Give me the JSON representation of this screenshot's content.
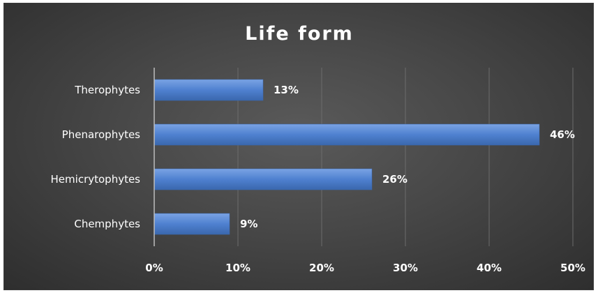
{
  "chart_data": {
    "type": "bar",
    "orientation": "horizontal",
    "title": "Life form",
    "categories": [
      "Therophytes",
      "Phenarophytes",
      "Hemicrytophytes",
      "Chemphytes"
    ],
    "values": [
      13,
      46,
      26,
      9
    ],
    "data_labels": [
      "13%",
      "46%",
      "26%",
      "9%"
    ],
    "xlim": [
      0,
      50
    ],
    "x_ticks": [
      0,
      10,
      20,
      30,
      40,
      50
    ],
    "x_tick_labels": [
      "0%",
      "10%",
      "20%",
      "30%",
      "40%",
      "50%"
    ],
    "xlabel": "",
    "ylabel": "",
    "grid": "vertical",
    "legend": "none",
    "colors": {
      "bar": "#4f81d0",
      "bar_dark": "#3a67ad",
      "bar_light": "#7aa3e4",
      "background": "#474747",
      "text": "#ffffff"
    }
  }
}
